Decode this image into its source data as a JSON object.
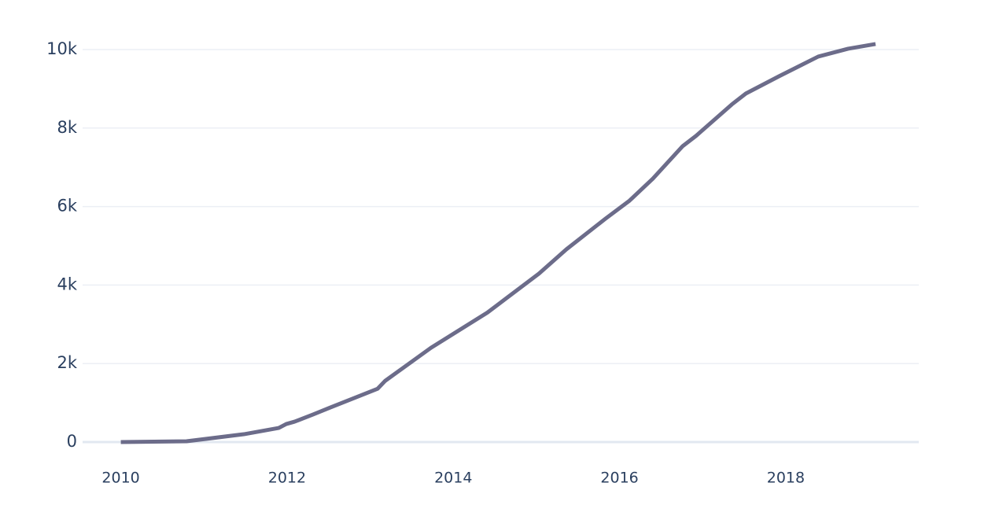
{
  "chart_data": {
    "type": "line",
    "x": [
      2010,
      2010.79,
      2011.48,
      2011.9,
      2011.99,
      2012.09,
      2012.31,
      2012.52,
      2013.09,
      2013.18,
      2013.73,
      2014.41,
      2015.03,
      2015.36,
      2015.83,
      2016.12,
      2016.4,
      2016.76,
      2016.92,
      2017.35,
      2017.52,
      2017.92,
      2018.39,
      2018.75,
      2019.08
    ],
    "series": [
      {
        "color": "#6c6c8a",
        "values": [
          0,
          20,
          200,
          360,
          460,
          520,
          700,
          880,
          1360,
          1560,
          2400,
          3300,
          4290,
          4910,
          5690,
          6150,
          6710,
          7540,
          7800,
          8600,
          8880,
          9320,
          9820,
          10020,
          10140
        ]
      }
    ],
    "xlim": [
      2009.54,
      2019.6
    ],
    "xticks": [
      2010,
      2012,
      2014,
      2016,
      2018
    ],
    "ylim": [
      -250,
      10500
    ],
    "yticks": [
      0,
      {
        "value": 2000,
        "label": "2k"
      },
      {
        "value": 4000,
        "label": "4k"
      },
      {
        "value": 6000,
        "label": "6k"
      },
      {
        "value": 8000,
        "label": "8k"
      },
      {
        "value": 10000,
        "label": "10k"
      }
    ],
    "grid": true
  }
}
